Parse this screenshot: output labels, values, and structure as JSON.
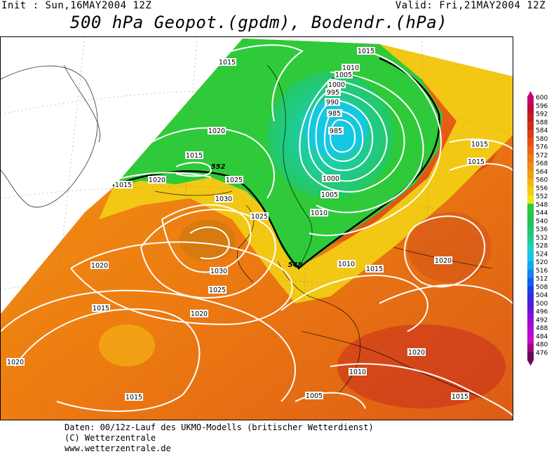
{
  "header": {
    "init": "Init : Sun,16MAY2004 12Z",
    "valid": "Valid: Fri,21MAY2004 12Z",
    "title": "500 hPa Geopot.(gpdm), Bodendr.(hPa)"
  },
  "legend": {
    "levels": [
      "600",
      "596",
      "592",
      "588",
      "584",
      "580",
      "576",
      "572",
      "568",
      "564",
      "560",
      "556",
      "552",
      "548",
      "544",
      "540",
      "536",
      "532",
      "528",
      "524",
      "520",
      "516",
      "512",
      "508",
      "504",
      "500",
      "496",
      "492",
      "488",
      "484",
      "480",
      "476"
    ],
    "colors": [
      "#c8006e",
      "#b8102a",
      "#c41e1e",
      "#d22a1c",
      "#dc3a18",
      "#e45016",
      "#ea6412",
      "#ee7812",
      "#f08c14",
      "#f0a014",
      "#f2b814",
      "#f4cc14",
      "#f4e414",
      "#2eca3a",
      "#22c44a",
      "#1ec35e",
      "#20c77a",
      "#1ecc9e",
      "#1cd0c4",
      "#14c8e6",
      "#14a8ee",
      "#1484ee",
      "#1460ee",
      "#1c40e8",
      "#3a28e0",
      "#5a18de",
      "#7c12da",
      "#9a0ed6",
      "#b40ad0",
      "#c80ac8",
      "#a0087e",
      "#6e0658"
    ]
  },
  "map_labels": {
    "isobars": [
      "1015",
      "1010",
      "1005",
      "1000",
      "995",
      "990",
      "985",
      "985",
      "1020",
      "1015",
      "1015",
      "1020",
      "1025",
      "1030",
      "1025",
      "1030",
      "1020",
      "1025",
      "1020",
      "1015",
      "1020",
      "1015",
      "1020",
      "1010",
      "1010",
      "1005",
      "1015",
      "1015",
      "1015",
      "1020",
      "1000",
      "1005",
      "1010",
      "1015",
      "1015"
    ],
    "geopotential": [
      "552",
      "548"
    ]
  },
  "footer": {
    "line1": "Daten: 00/12z-Lauf des UKMO-Modells (britischer Wetterdienst)",
    "line2": "(C) Wetterzentrale",
    "line3": "www.wetterzentrale.de"
  }
}
